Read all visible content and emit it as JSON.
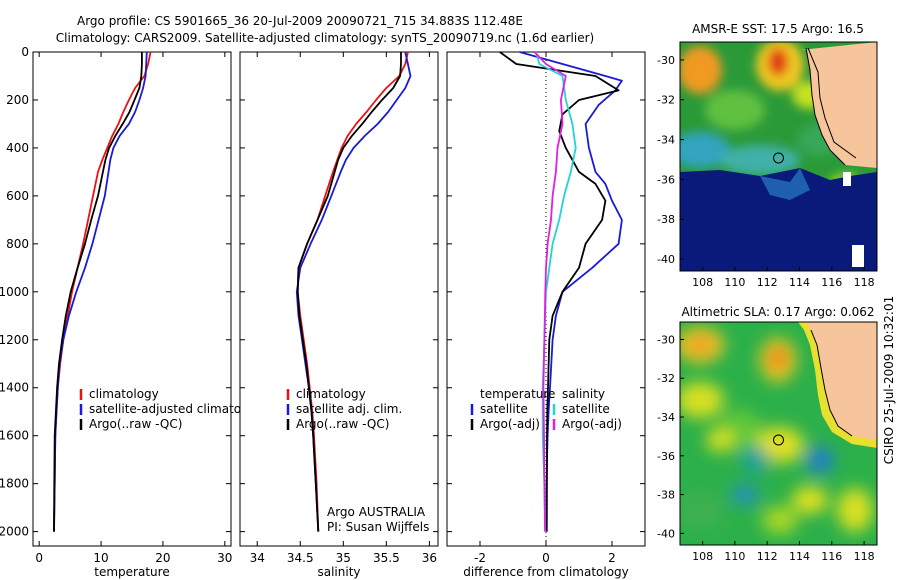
{
  "header": {
    "line1": "Argo profile: CS 5901665_36 20-Jul-2009 20090721_715 34.883S 112.48E",
    "line2": "Climatology: CARS2009. Satellite-adjusted climatology: synTS_20090719.nc (1.6d earlier)"
  },
  "footer_stamp": "CSIRO 25-Jul-2009 10:32:01",
  "colors": {
    "climatology": "#ee1111",
    "satellite": "#1a1ad6",
    "argo": "#000000",
    "satellite_salinity_diff": "#22d4d4",
    "argo_salinity_diff": "#e21ee2",
    "land": "#f7c59c",
    "deep_ocean": "#0a1a7a"
  },
  "chart_data": [
    {
      "id": "temperature",
      "type": "line",
      "xlabel": "temperature",
      "xlim": [
        -1,
        31
      ],
      "ylim": [
        2060,
        0
      ],
      "xticks": [
        0,
        10,
        20,
        30
      ],
      "yticks": [
        0,
        200,
        400,
        600,
        800,
        1000,
        1200,
        1400,
        1600,
        1800,
        2000
      ],
      "legend": [
        "climatology",
        "satellite-adjusted climatology",
        "Argo(..raw -QC)"
      ],
      "legend_placement": "center-right",
      "series": [
        {
          "name": "climatology",
          "color": "#ee1111",
          "x": [
            18.0,
            17.6,
            17.0,
            15.5,
            14.5,
            13.6,
            12.8,
            11.8,
            11.0,
            10.2,
            9.5,
            8.7,
            7.9,
            7.1,
            6.2,
            5.3,
            4.6,
            3.9,
            3.4,
            3.0,
            2.8,
            2.6,
            2.5,
            2.4
          ],
          "y": [
            0,
            50,
            100,
            150,
            200,
            250,
            300,
            350,
            400,
            450,
            500,
            600,
            700,
            800,
            900,
            1000,
            1100,
            1200,
            1300,
            1400,
            1500,
            1600,
            1800,
            2000
          ]
        },
        {
          "name": "satellite-adjusted climatology",
          "color": "#1a1ad6",
          "x": [
            17.4,
            17.3,
            17.2,
            16.8,
            16.2,
            15.5,
            14.5,
            13.0,
            12.0,
            11.5,
            11.2,
            10.6,
            9.6,
            8.6,
            7.4,
            6.0,
            4.8,
            3.9,
            3.3,
            3.0,
            2.8,
            2.6,
            2.5,
            2.4
          ],
          "y": [
            0,
            50,
            100,
            150,
            200,
            250,
            300,
            350,
            400,
            450,
            500,
            600,
            700,
            800,
            900,
            1000,
            1100,
            1200,
            1300,
            1400,
            1500,
            1600,
            1800,
            2000
          ]
        },
        {
          "name": "Argo(..raw -QC)",
          "color": "#000000",
          "x": [
            16.6,
            16.6,
            16.5,
            16.2,
            15.4,
            14.6,
            13.5,
            12.3,
            11.3,
            10.7,
            10.3,
            9.5,
            8.4,
            7.4,
            6.2,
            5.1,
            4.3,
            3.7,
            3.2,
            2.9,
            2.7,
            2.5,
            2.45,
            2.4
          ],
          "y": [
            0,
            50,
            100,
            150,
            200,
            250,
            300,
            350,
            400,
            450,
            500,
            600,
            700,
            800,
            900,
            1000,
            1100,
            1200,
            1300,
            1400,
            1500,
            1600,
            1800,
            2000
          ]
        }
      ]
    },
    {
      "id": "salinity",
      "type": "line",
      "xlabel": "salinity",
      "xlim": [
        33.8,
        36.1
      ],
      "ylim": [
        2060,
        0
      ],
      "xticks": [
        34,
        34.5,
        35,
        35.5,
        36
      ],
      "legend": [
        "climatology",
        "satellite adj. clim.",
        "Argo(..raw -QC)"
      ],
      "legend_placement": "center-right",
      "annotation": [
        "Argo AUSTRALIA",
        "PI: Susan Wijffels"
      ],
      "series": [
        {
          "name": "climatology",
          "color": "#ee1111",
          "x": [
            35.75,
            35.72,
            35.65,
            35.5,
            35.38,
            35.27,
            35.15,
            35.05,
            34.98,
            34.93,
            34.88,
            34.79,
            34.7,
            34.58,
            34.48,
            34.47,
            34.5,
            34.54,
            34.58,
            34.61,
            34.64,
            34.66,
            34.69,
            34.71
          ],
          "y": [
            0,
            50,
            100,
            150,
            200,
            250,
            300,
            350,
            400,
            450,
            500,
            600,
            700,
            800,
            900,
            1000,
            1100,
            1200,
            1300,
            1400,
            1500,
            1600,
            1800,
            2000
          ]
        },
        {
          "name": "satellite adj. clim.",
          "color": "#1a1ad6",
          "x": [
            35.72,
            35.75,
            35.78,
            35.72,
            35.62,
            35.52,
            35.4,
            35.25,
            35.12,
            35.03,
            34.97,
            34.86,
            34.75,
            34.62,
            34.5,
            34.46,
            34.48,
            34.52,
            34.56,
            34.6,
            34.63,
            34.65,
            34.68,
            34.71
          ],
          "y": [
            0,
            50,
            100,
            150,
            200,
            250,
            300,
            350,
            400,
            450,
            500,
            600,
            700,
            800,
            900,
            1000,
            1100,
            1200,
            1300,
            1400,
            1500,
            1600,
            1800,
            2000
          ]
        },
        {
          "name": "Argo(..raw -QC)",
          "color": "#000000",
          "x": [
            35.67,
            35.67,
            35.66,
            35.58,
            35.45,
            35.33,
            35.22,
            35.1,
            35.0,
            34.94,
            34.9,
            34.82,
            34.7,
            34.58,
            34.48,
            34.47,
            34.49,
            34.53,
            34.57,
            34.6,
            34.63,
            34.65,
            34.68,
            34.71
          ],
          "y": [
            0,
            50,
            100,
            150,
            200,
            250,
            300,
            350,
            400,
            450,
            500,
            600,
            700,
            800,
            900,
            1000,
            1100,
            1200,
            1300,
            1400,
            1500,
            1600,
            1800,
            2000
          ]
        }
      ]
    },
    {
      "id": "difference",
      "type": "line",
      "xlabel": "difference from climatology",
      "xlim": [
        -3,
        3
      ],
      "ylim": [
        2060,
        0
      ],
      "xticks": [
        -2,
        0,
        2
      ],
      "legend_columns": [
        {
          "heading": "temperature",
          "items": [
            "satellite",
            "Argo(-adj)"
          ]
        },
        {
          "heading": "salinity",
          "items": [
            "satellite",
            "Argo(-adj)"
          ]
        }
      ],
      "legend_placement": "center",
      "series": [
        {
          "name": "temperature satellite",
          "color": "#1a1ad6",
          "x": [
            -0.8,
            0.5,
            1.8,
            2.3,
            2.1,
            1.6,
            1.2,
            1.3,
            1.5,
            1.8,
            2.0,
            2.3,
            2.2,
            1.4,
            0.5,
            0.3,
            0.2,
            0.12,
            0.08,
            0.05,
            0.03,
            0.02,
            0.02
          ],
          "y": [
            0,
            50,
            100,
            120,
            160,
            220,
            300,
            400,
            500,
            550,
            620,
            700,
            800,
            900,
            1000,
            1100,
            1200,
            1400,
            1500,
            1600,
            1700,
            1800,
            2000
          ]
        },
        {
          "name": "temperature Argo(-adj)",
          "color": "#000000",
          "x": [
            -1.4,
            -0.9,
            1.5,
            2.2,
            1.0,
            0.5,
            0.4,
            0.6,
            1.0,
            1.5,
            1.8,
            1.7,
            1.2,
            1.0,
            0.5,
            0.2,
            0.1,
            0.06,
            0.04,
            0.03,
            0.02
          ],
          "y": [
            0,
            50,
            100,
            160,
            200,
            260,
            330,
            400,
            500,
            550,
            620,
            700,
            800,
            900,
            1000,
            1100,
            1200,
            1400,
            1500,
            1600,
            2000
          ]
        },
        {
          "name": "salinity satellite",
          "color": "#22d4d4",
          "x": [
            -0.3,
            -0.2,
            0.5,
            0.6,
            0.8,
            0.9,
            0.75,
            0.55,
            0.4,
            0.2,
            0.1,
            0.0,
            -0.05,
            -0.1,
            -0.1,
            -0.05,
            -0.02
          ],
          "y": [
            0,
            50,
            100,
            200,
            300,
            400,
            500,
            600,
            700,
            800,
            900,
            1000,
            1200,
            1400,
            1600,
            1800,
            2000
          ]
        },
        {
          "name": "salinity Argo(-adj)",
          "color": "#e21ee2",
          "x": [
            -0.35,
            0.0,
            0.6,
            0.45,
            0.5,
            0.35,
            0.3,
            0.2,
            0.15,
            0.05,
            0.0,
            -0.02,
            -0.05,
            -0.08,
            -0.06,
            -0.05,
            -0.03
          ],
          "y": [
            0,
            50,
            100,
            200,
            300,
            400,
            500,
            600,
            700,
            800,
            900,
            1000,
            1200,
            1400,
            1600,
            1800,
            2000
          ]
        }
      ]
    }
  ],
  "maps": [
    {
      "id": "sst-map",
      "title": "AMSR-E SST: 17.5  Argo: 16.5",
      "xticks": [
        "108",
        "110",
        "112",
        "114",
        "116",
        "118"
      ],
      "yticks": [
        "-30",
        "-32",
        "-34",
        "-36",
        "-38",
        "-40"
      ]
    },
    {
      "id": "sla-map",
      "title": "Altimetric SLA: 0.17  Argo: 0.062",
      "xticks": [
        "108",
        "110",
        "112",
        "114",
        "116",
        "118"
      ],
      "yticks": [
        "-30",
        "-32",
        "-34",
        "-36",
        "-38",
        "-40"
      ]
    }
  ]
}
